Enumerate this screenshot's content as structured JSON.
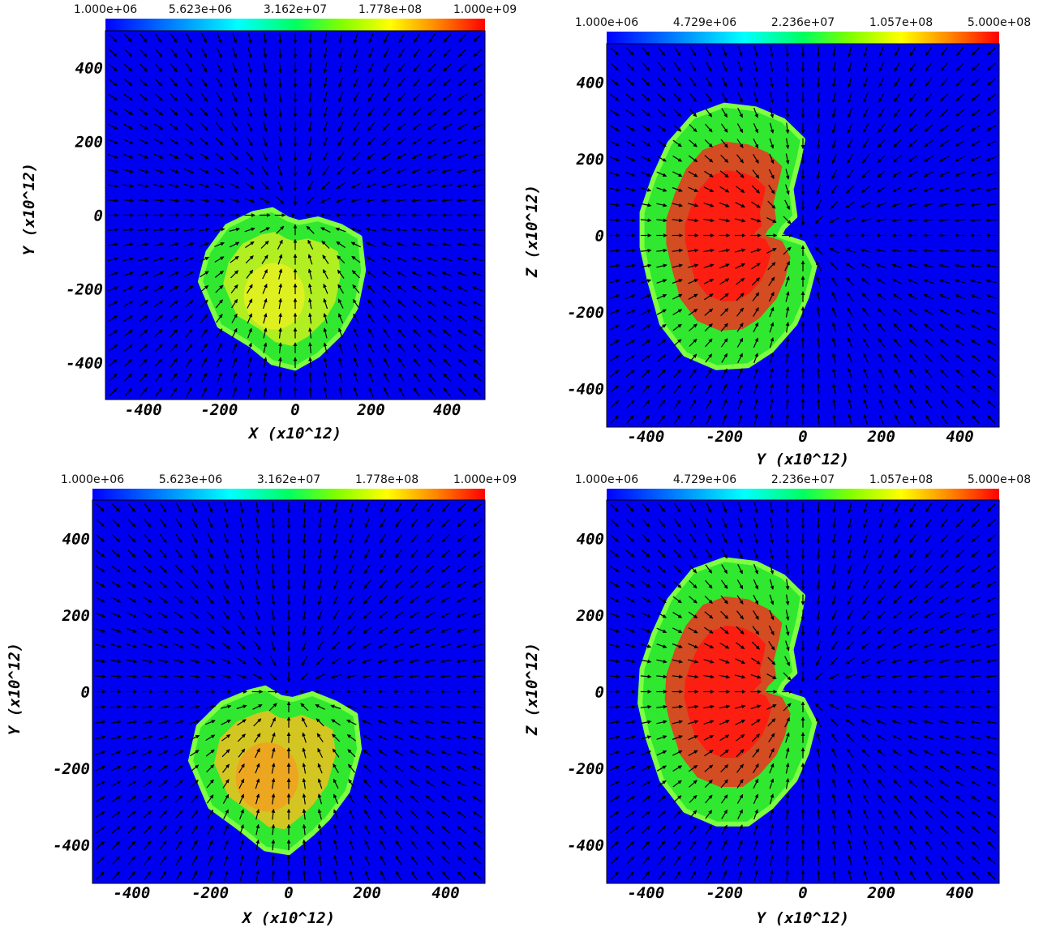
{
  "chart_data": [
    {
      "type": "heatmap",
      "panel": "top-left",
      "colorbar": {
        "scale": "log",
        "range": [
          1000000,
          1000000000
        ],
        "ticks": [
          "1.000e+06",
          "5.623e+06",
          "3.162e+07",
          "1.778e+08",
          "1.000e+09"
        ]
      },
      "xlabel": "X  (x10^12)",
      "ylabel": "Y  (x10^12)",
      "xlim": [
        -500,
        500
      ],
      "ylim": [
        -500,
        500
      ],
      "xticks": [
        -400,
        -200,
        0,
        200,
        400
      ],
      "yticks": [
        400,
        200,
        0,
        -200,
        -400
      ],
      "overlay": "velocity vector arrows (radial inflow)",
      "blob": {
        "x": [
          -250,
          180
        ],
        "y": [
          -415,
          15
        ],
        "level": "green to yellow",
        "peak_fraction": 0.72,
        "outline": [
          [
            -60,
            15
          ],
          [
            -20,
            -10
          ],
          [
            10,
            -20
          ],
          [
            60,
            -10
          ],
          [
            120,
            -30
          ],
          [
            170,
            -60
          ],
          [
            180,
            -150
          ],
          [
            160,
            -250
          ],
          [
            120,
            -320
          ],
          [
            60,
            -380
          ],
          [
            0,
            -415
          ],
          [
            -60,
            -400
          ],
          [
            -120,
            -350
          ],
          [
            -200,
            -300
          ],
          [
            -250,
            -180
          ],
          [
            -230,
            -100
          ],
          [
            -180,
            -30
          ],
          [
            -110,
            5
          ]
        ]
      }
    },
    {
      "type": "heatmap",
      "panel": "top-right",
      "colorbar": {
        "scale": "log",
        "range": [
          1000000,
          500000000
        ],
        "ticks": [
          "1.000e+06",
          "4.729e+06",
          "2.236e+07",
          "1.057e+08",
          "5.000e+08"
        ]
      },
      "xlabel": "Y  (x10^12)",
      "ylabel": "Z  (x10^12)",
      "xlim": [
        -500,
        500
      ],
      "ylim": [
        -500,
        500
      ],
      "xticks": [
        -400,
        -200,
        0,
        200,
        400
      ],
      "yticks": [
        400,
        200,
        0,
        -200,
        -400
      ],
      "overlay": "velocity vector arrows (radial inflow)",
      "blob": {
        "x": [
          -420,
          40
        ],
        "y": [
          -350,
          350
        ],
        "level": "green rim, red core",
        "peak_fraction": 0.97,
        "outline": [
          [
            -200,
            340
          ],
          [
            -120,
            330
          ],
          [
            -50,
            300
          ],
          [
            0,
            250
          ],
          [
            -10,
            200
          ],
          [
            -30,
            120
          ],
          [
            -20,
            50
          ],
          [
            -50,
            20
          ],
          [
            -60,
            0
          ],
          [
            0,
            -20
          ],
          [
            30,
            -80
          ],
          [
            10,
            -160
          ],
          [
            -20,
            -230
          ],
          [
            -80,
            -300
          ],
          [
            -140,
            -340
          ],
          [
            -220,
            -345
          ],
          [
            -300,
            -310
          ],
          [
            -360,
            -230
          ],
          [
            -390,
            -120
          ],
          [
            -410,
            -30
          ],
          [
            -410,
            60
          ],
          [
            -380,
            150
          ],
          [
            -340,
            240
          ],
          [
            -280,
            310
          ]
        ]
      }
    },
    {
      "type": "heatmap",
      "panel": "bottom-left",
      "colorbar": {
        "scale": "log",
        "range": [
          1000000,
          1000000000
        ],
        "ticks": [
          "1.000e+06",
          "5.623e+06",
          "3.162e+07",
          "1.778e+08",
          "1.000e+09"
        ]
      },
      "xlabel": "X  (x10^12)",
      "ylabel": "Y  (x10^12)",
      "xlim": [
        -500,
        500
      ],
      "ylim": [
        -500,
        500
      ],
      "xticks": [
        -400,
        -200,
        0,
        200,
        400
      ],
      "yticks": [
        400,
        200,
        0,
        -200,
        -400
      ],
      "overlay": "velocity vector arrows (radial inflow)",
      "blob": {
        "x": [
          -250,
          180
        ],
        "y": [
          -420,
          15
        ],
        "level": "green to orange",
        "peak_fraction": 0.85,
        "outline": [
          [
            -60,
            10
          ],
          [
            -20,
            -15
          ],
          [
            10,
            -20
          ],
          [
            60,
            -5
          ],
          [
            120,
            -30
          ],
          [
            170,
            -60
          ],
          [
            180,
            -150
          ],
          [
            150,
            -260
          ],
          [
            100,
            -330
          ],
          [
            60,
            -370
          ],
          [
            0,
            -420
          ],
          [
            -60,
            -410
          ],
          [
            -120,
            -360
          ],
          [
            -200,
            -300
          ],
          [
            -250,
            -180
          ],
          [
            -230,
            -90
          ],
          [
            -170,
            -30
          ],
          [
            -100,
            0
          ]
        ]
      }
    },
    {
      "type": "heatmap",
      "panel": "bottom-right",
      "colorbar": {
        "scale": "log",
        "range": [
          1000000,
          500000000
        ],
        "ticks": [
          "1.000e+06",
          "4.729e+06",
          "2.236e+07",
          "1.057e+08",
          "5.000e+08"
        ]
      },
      "xlabel": "Y  (x10^12)",
      "ylabel": "Z  (x10^12)",
      "xlim": [
        -500,
        500
      ],
      "ylim": [
        -500,
        500
      ],
      "xticks": [
        -400,
        -200,
        0,
        200,
        400
      ],
      "yticks": [
        400,
        200,
        0,
        -200,
        -400
      ],
      "overlay": "velocity vector arrows (radial inflow)",
      "blob": {
        "x": [
          -420,
          40
        ],
        "y": [
          -350,
          350
        ],
        "level": "green rim, red core",
        "peak_fraction": 0.97,
        "outline": [
          [
            -200,
            345
          ],
          [
            -120,
            335
          ],
          [
            -50,
            300
          ],
          [
            0,
            250
          ],
          [
            -10,
            190
          ],
          [
            -30,
            110
          ],
          [
            -20,
            50
          ],
          [
            -50,
            20
          ],
          [
            -60,
            0
          ],
          [
            0,
            -20
          ],
          [
            30,
            -80
          ],
          [
            10,
            -160
          ],
          [
            -20,
            -230
          ],
          [
            -80,
            -300
          ],
          [
            -140,
            -345
          ],
          [
            -220,
            -345
          ],
          [
            -300,
            -310
          ],
          [
            -360,
            -230
          ],
          [
            -395,
            -120
          ],
          [
            -415,
            -30
          ],
          [
            -410,
            60
          ],
          [
            -380,
            150
          ],
          [
            -340,
            240
          ],
          [
            -280,
            315
          ]
        ]
      }
    }
  ]
}
